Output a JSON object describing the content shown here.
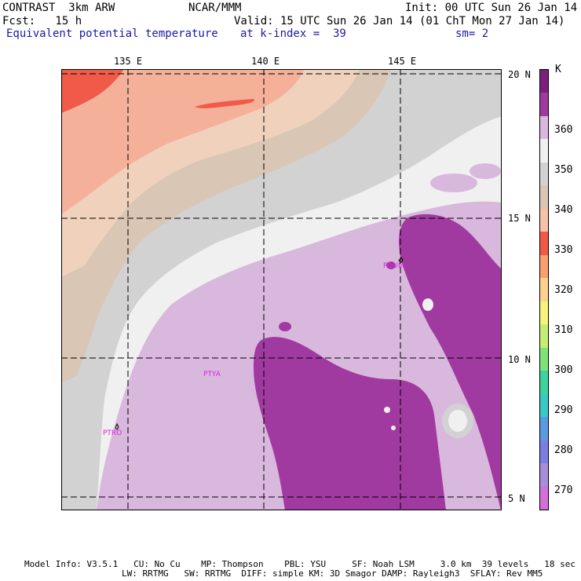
{
  "header": {
    "line1_left": "CONTRAST  3km ARW",
    "line1_center": "NCAR/MMM",
    "line1_right": "Init: 00 UTC Sun 26 Jan 14",
    "line2_left": "Fcst:   15 h",
    "line2_right": "Valid: 15 UTC Sun 26 Jan 14 (01 ChT Mon 27 Jan 14)",
    "line3_left": "Equivalent potential temperature",
    "line3_center": "at k-index =  39",
    "line3_right": "sm= 2"
  },
  "map": {
    "lon_labels": [
      "135 E",
      "140 E",
      "145 E"
    ],
    "lat_labels": [
      "20 N",
      "15 N",
      "10 N",
      "5 N"
    ],
    "stations": [
      "PGUM",
      "PTYA",
      "PTRO"
    ]
  },
  "colorbar": {
    "unit": "K",
    "labels": [
      "360",
      "350",
      "340",
      "330",
      "320",
      "310",
      "300",
      "290",
      "280",
      "270"
    ],
    "colors": [
      "#7e1f7e",
      "#a03aa0",
      "#d8b8dc",
      "#f0f0f0",
      "#d2d2d2",
      "#d9c6b4",
      "#f5c2a8",
      "#f05a48",
      "#f7a06e",
      "#fbd18c",
      "#f7f27a",
      "#c4ee72",
      "#7ee27c",
      "#3ed29c",
      "#38c8c8",
      "#5a9be0",
      "#7b7ede",
      "#a88ed8",
      "#d070d8"
    ]
  },
  "footer": {
    "line1": "Model Info: V3.5.1   CU: No Cu    MP: Thompson    PBL: YSU     SF: Noah LSM     3.0 km  39 levels   18 sec",
    "line2": "LW: RRTMG   SW: RRTMG  DIFF: simple KM: 3D Smagor DAMP: Rayleigh3  SFLAY: Rev MM5"
  }
}
